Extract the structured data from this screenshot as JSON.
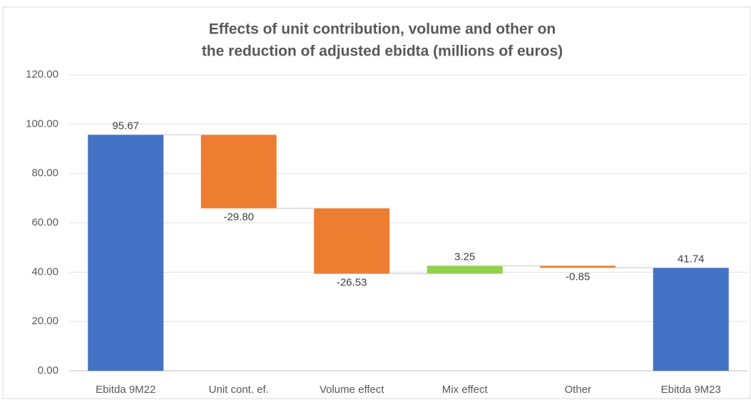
{
  "chart_data": {
    "type": "waterfall",
    "title": [
      "Effects of unit contribution, volume and other on",
      "the reduction of adjusted ebidta (millions of euros)"
    ],
    "categories": [
      "Ebitda 9M22",
      "Unit cont. ef.",
      "Volume effect",
      "Mix effect",
      "Other",
      "Ebitda 9M23"
    ],
    "values": [
      95.67,
      -29.8,
      -26.53,
      3.25,
      -0.85,
      41.74
    ],
    "value_labels": [
      "95.67",
      "-29.80",
      "-26.53",
      "3.25",
      "-0.85",
      "41.74"
    ],
    "totals": [
      0,
      5
    ],
    "colors": {
      "total": "#4472c4",
      "decrease": "#ed7d31",
      "increase": "#92d050"
    },
    "ylim": [
      0,
      120
    ],
    "yticks": [
      {
        "value": 0,
        "label": "0.00"
      },
      {
        "value": 20,
        "label": "20.00"
      },
      {
        "value": 40,
        "label": "40.00"
      },
      {
        "value": 60,
        "label": "60.00"
      },
      {
        "value": 80,
        "label": "80.00"
      },
      {
        "value": 100,
        "label": "100.00"
      },
      {
        "value": 120,
        "label": "120.00"
      }
    ],
    "grid": true
  }
}
